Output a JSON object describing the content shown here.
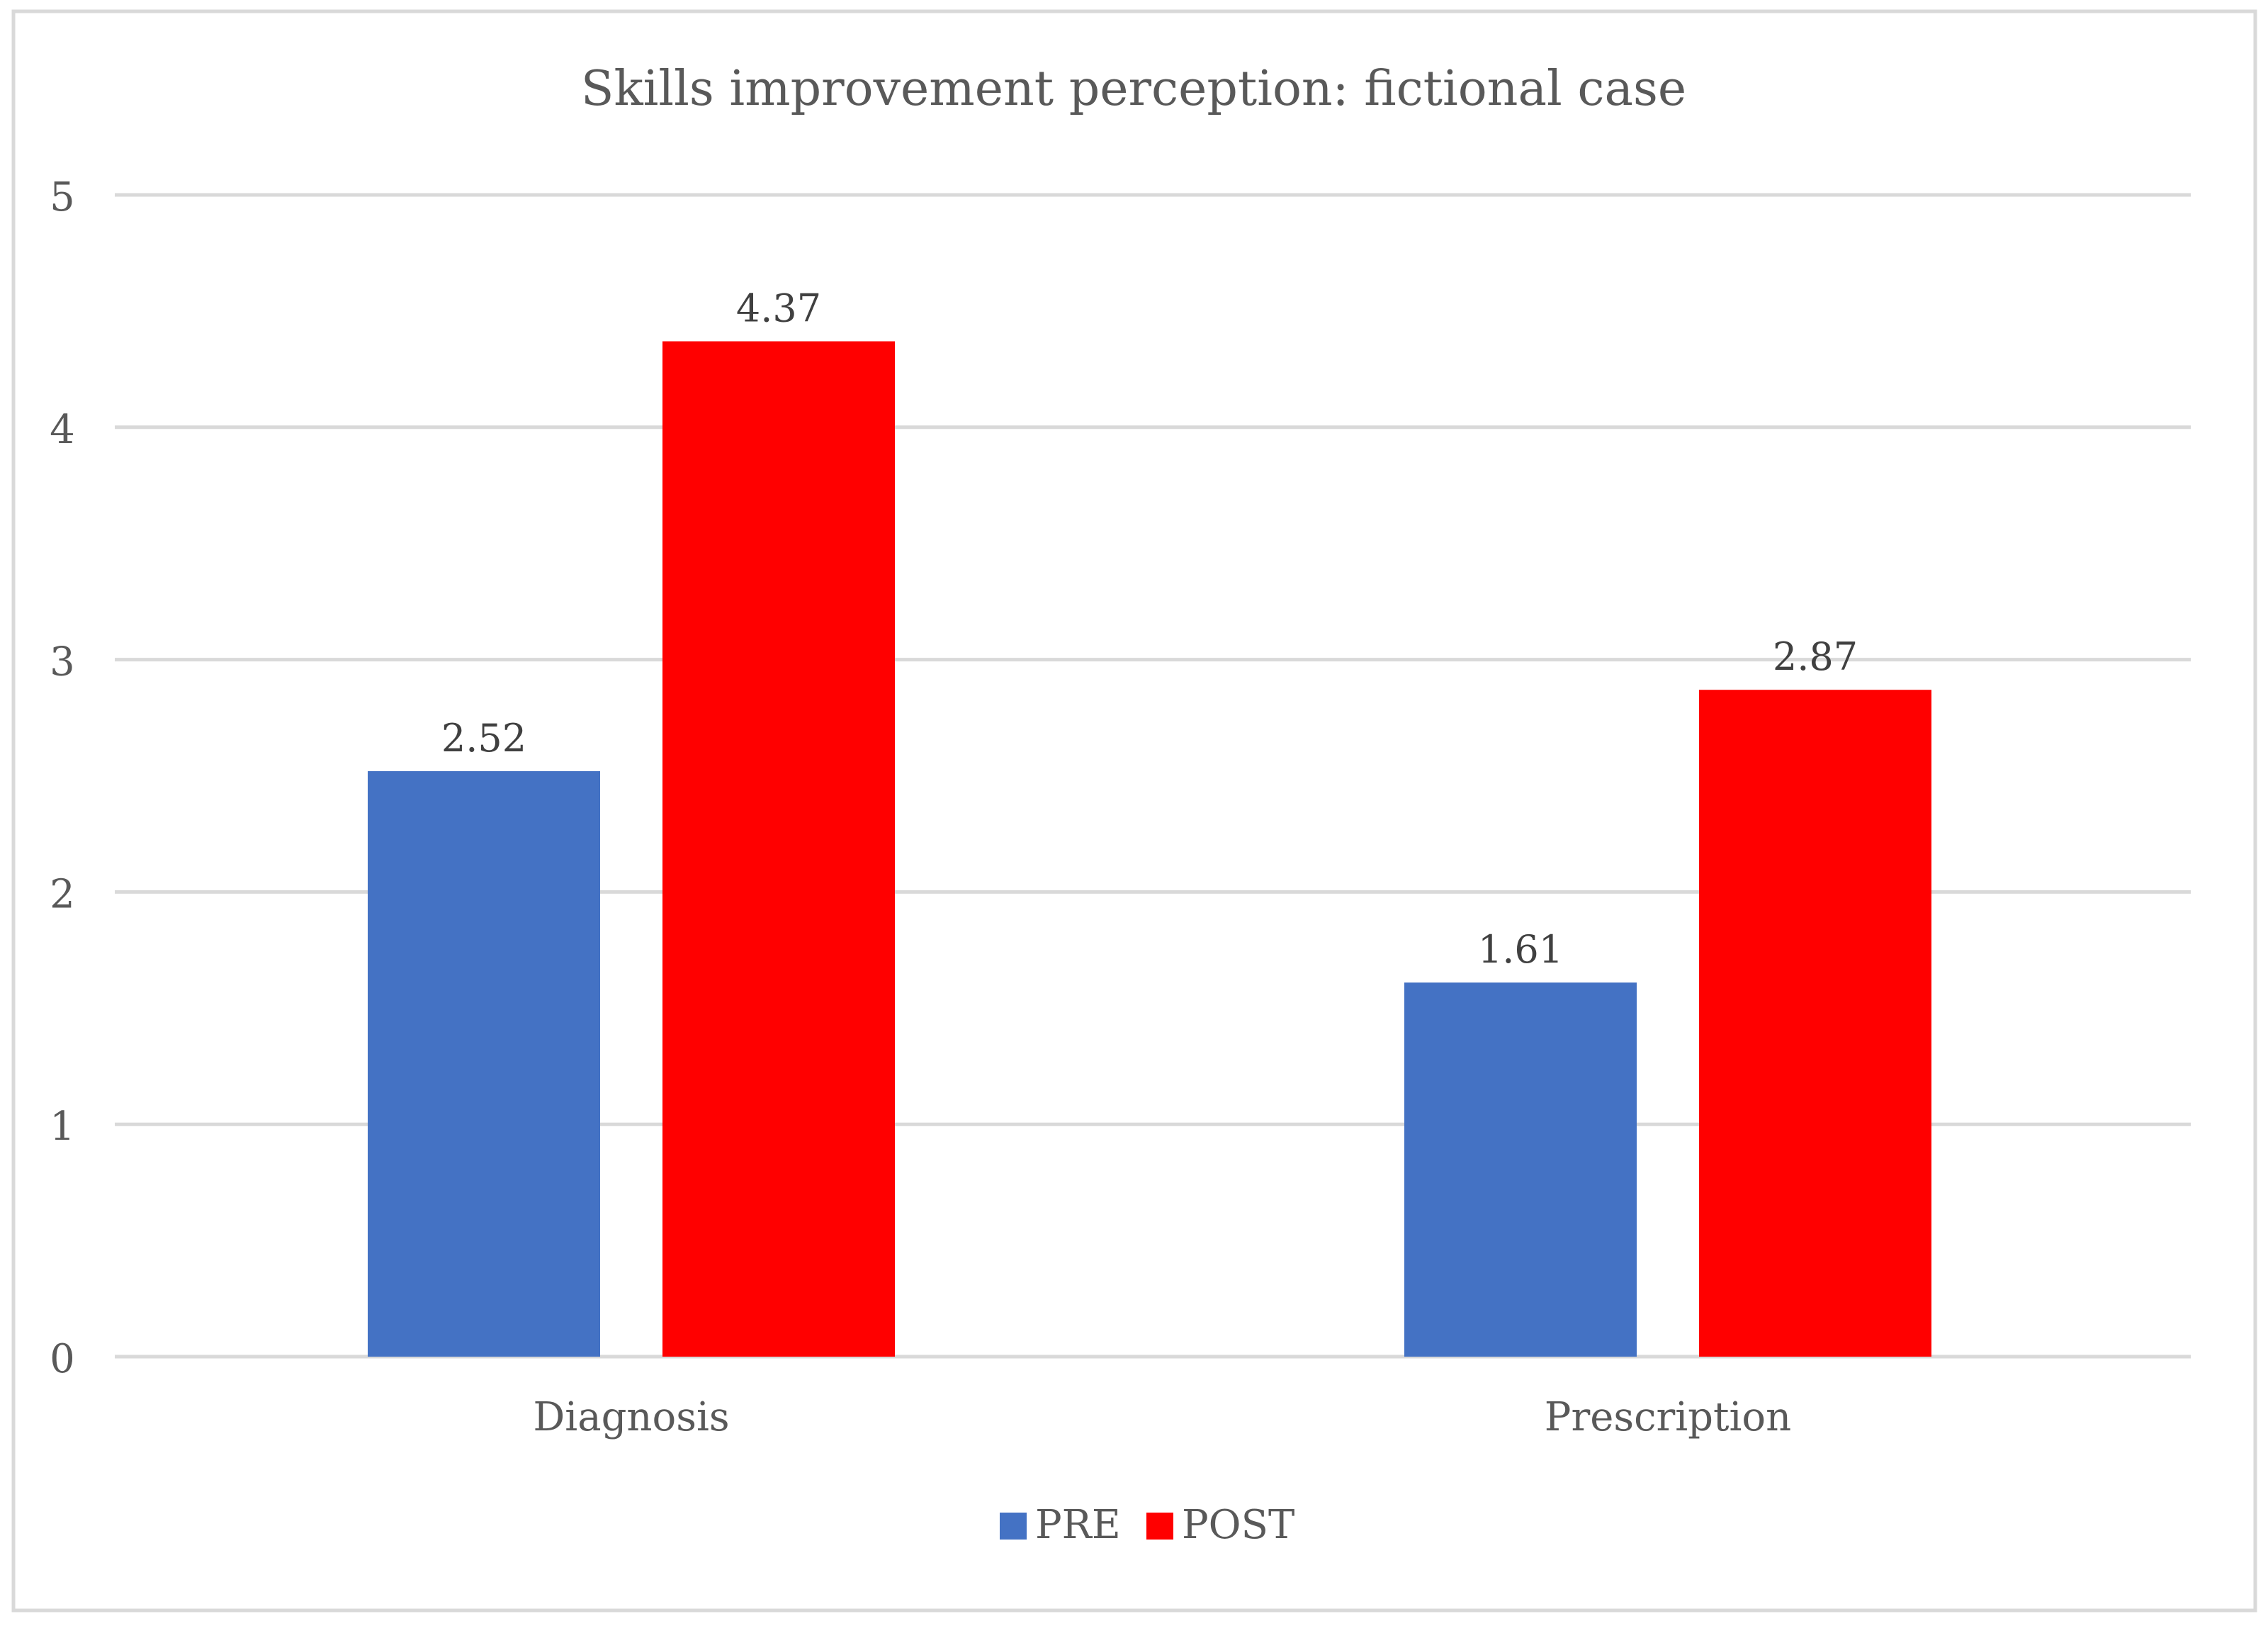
{
  "chart_data": {
    "type": "bar",
    "title": "Skills improvement perception: fictional case",
    "xlabel": "",
    "ylabel": "",
    "categories": [
      "Diagnosis",
      "Prescription"
    ],
    "series": [
      {
        "name": "PRE",
        "color": "#4472C4",
        "values": [
          2.52,
          1.61
        ],
        "labels": [
          "2.52",
          "1.61"
        ]
      },
      {
        "name": "POST",
        "color": "#FF0000",
        "values": [
          4.37,
          2.87
        ],
        "labels": [
          "4.37",
          "2.87"
        ]
      }
    ],
    "ylim": [
      0,
      5
    ],
    "yticks": [
      0,
      1,
      2,
      3,
      4,
      5
    ],
    "grid": true,
    "legend_position": "bottom-center"
  }
}
